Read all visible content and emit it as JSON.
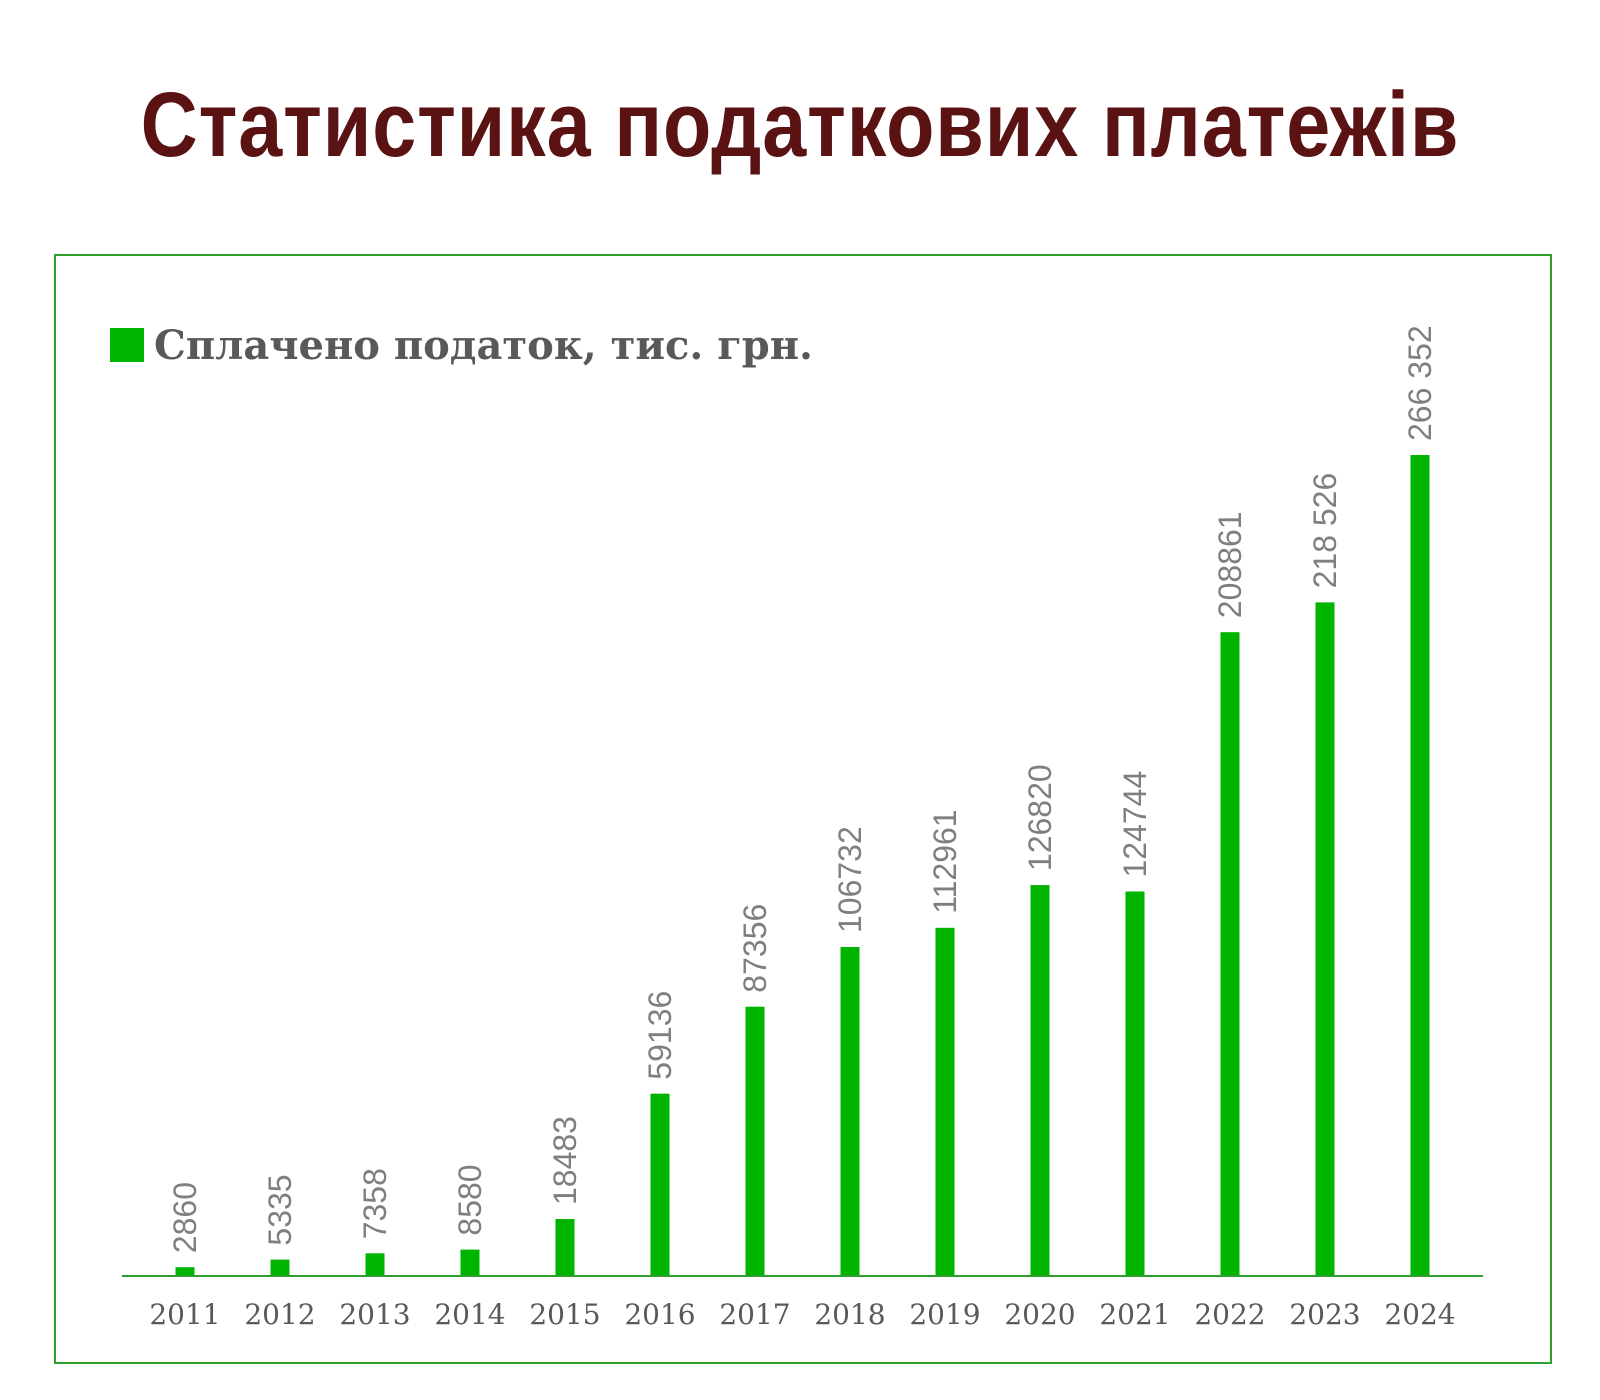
{
  "title": "Статистика податкових платежів",
  "colors": {
    "title": "#5a1212",
    "bar": "#00b400",
    "axis": "#2e9e2e",
    "frame": "#2e9e2e",
    "tick_text": "#595959",
    "data_label_text": "#7f7f7f",
    "legend_text": "#595959"
  },
  "chart_data": {
    "type": "bar",
    "title": "",
    "xlabel": "",
    "ylabel": "",
    "grid": false,
    "legend_position": "top-left",
    "categories": [
      "2011",
      "2012",
      "2013",
      "2014",
      "2015",
      "2016",
      "2017",
      "2018",
      "2019",
      "2020",
      "2021",
      "2022",
      "2023",
      "2024"
    ],
    "series": [
      {
        "name": "Сплачено податок, тис. грн.",
        "values": [
          2860,
          5335,
          7358,
          8580,
          18483,
          59136,
          87356,
          106732,
          112961,
          126820,
          124744,
          208861,
          218526,
          266352
        ],
        "labels": [
          "2860",
          "5335",
          "7358",
          "8580",
          "18483",
          "59136",
          "87356",
          "106732",
          "112961",
          "126820",
          "124744",
          "208861",
          "218 526",
          "266 352"
        ]
      }
    ],
    "ylim": [
      0,
      266352
    ]
  }
}
